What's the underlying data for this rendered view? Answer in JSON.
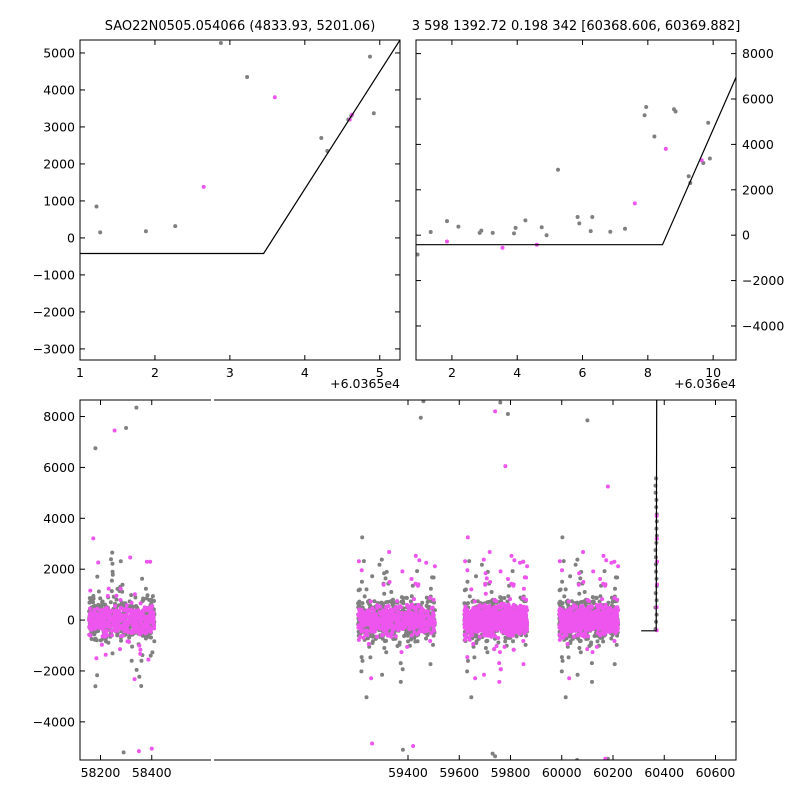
{
  "titles": {
    "left": "SAO22N0505.054066 (4833.93, 5201.06)",
    "right": "3 598 1392.72 0.198 342 [60368.606, 60369.882]"
  },
  "colors": {
    "grey": "#808080",
    "magenta": "#ee55ee",
    "line": "#000000"
  },
  "offsets": {
    "top_left": "+6.0365e4",
    "top_right": "+6.036e4"
  },
  "chart_data": [
    {
      "type": "scatter",
      "panel": "top-left zoom",
      "title": "SAO22N0505.054066 (4833.93, 5201.06)",
      "xlim": [
        1.0,
        5.27
      ],
      "ylim": [
        -3300,
        5350
      ],
      "xticks": [
        1,
        2,
        3,
        4,
        5
      ],
      "yticks": [
        -3000,
        -2000,
        -1000,
        0,
        1000,
        2000,
        3000,
        4000,
        5000
      ],
      "x_offset_label": "+6.0365e4",
      "series": [
        {
          "color": "grey",
          "points": [
            [
              1.22,
              850
            ],
            [
              1.27,
              150
            ],
            [
              1.88,
              180
            ],
            [
              2.27,
              320
            ],
            [
              2.88,
              5270
            ],
            [
              3.23,
              4350
            ],
            [
              4.22,
              2700
            ],
            [
              4.3,
              2350
            ],
            [
              4.58,
              3200
            ],
            [
              4.87,
              4900
            ],
            [
              4.92,
              3370
            ],
            [
              4.62,
              3300
            ]
          ]
        },
        {
          "color": "magenta",
          "points": [
            [
              2.65,
              1380
            ],
            [
              3.6,
              3800
            ],
            [
              4.6,
              3200
            ],
            [
              4.63,
              3330
            ]
          ]
        }
      ],
      "model_line": [
        [
          1.0,
          -420
        ],
        [
          3.45,
          -420
        ],
        [
          5.27,
          5350
        ]
      ]
    },
    {
      "type": "scatter",
      "panel": "top-right zoom",
      "title": "3 598 1392.72 0.198 342 [60368.606, 60369.882]",
      "xlim": [
        0.9,
        10.7
      ],
      "ylim": [
        -5500,
        8600
      ],
      "xticks": [
        2,
        4,
        6,
        8,
        10
      ],
      "yticks": [
        -4000,
        -2000,
        0,
        2000,
        4000,
        6000,
        8000
      ],
      "x_offset_label": "+6.036e4",
      "series": [
        {
          "color": "grey",
          "points": [
            [
              0.95,
              -850
            ],
            [
              1.35,
              140
            ],
            [
              1.85,
              620
            ],
            [
              2.2,
              380
            ],
            [
              2.85,
              100
            ],
            [
              2.9,
              200
            ],
            [
              3.25,
              100
            ],
            [
              3.9,
              80
            ],
            [
              3.95,
              320
            ],
            [
              4.25,
              650
            ],
            [
              4.75,
              350
            ],
            [
              4.9,
              0
            ],
            [
              5.25,
              2880
            ],
            [
              5.85,
              800
            ],
            [
              5.9,
              520
            ],
            [
              6.25,
              180
            ],
            [
              6.3,
              800
            ],
            [
              6.85,
              150
            ],
            [
              7.3,
              280
            ],
            [
              7.9,
              5280
            ],
            [
              7.95,
              5650
            ],
            [
              8.2,
              4350
            ],
            [
              8.8,
              5550
            ],
            [
              8.85,
              5450
            ],
            [
              9.25,
              2600
            ],
            [
              9.3,
              2300
            ],
            [
              9.7,
              3180
            ],
            [
              9.85,
              4950
            ],
            [
              9.9,
              3380
            ]
          ]
        },
        {
          "color": "magenta",
          "points": [
            [
              1.85,
              -280
            ],
            [
              3.55,
              -550
            ],
            [
              4.6,
              -420
            ],
            [
              7.6,
              1400
            ],
            [
              8.55,
              3800
            ],
            [
              9.65,
              3300
            ]
          ]
        }
      ],
      "model_line": [
        [
          0.9,
          -420
        ],
        [
          8.45,
          -420
        ],
        [
          10.7,
          6950
        ]
      ]
    },
    {
      "type": "scatter",
      "panel": "bottom full light curve",
      "xlim": [
        58120,
        60680
      ],
      "ylim": [
        -5500,
        8650
      ],
      "xticks": [
        58200,
        58400,
        59400,
        59600,
        59800,
        60000,
        60200,
        60400,
        60600
      ],
      "yticks": [
        -4000,
        -2000,
        0,
        2000,
        4000,
        6000,
        8000
      ],
      "axis_break": [
        58430,
        59190
      ],
      "clusters": [
        {
          "range": [
            58155,
            58410
          ],
          "grey": 540,
          "magenta": 430
        },
        {
          "range": [
            59205,
            59505
          ],
          "grey": 620,
          "magenta": 480
        },
        {
          "range": [
            59620,
            59865
          ],
          "grey": 560,
          "magenta": 760
        },
        {
          "range": [
            59990,
            60220
          ],
          "grey": 580,
          "magenta": 560
        },
        {
          "range": [
            60365,
            60372
          ],
          "grey": 22,
          "magenta": 6
        }
      ],
      "outliers_grey": [
        [
          58180,
          6750
        ],
        [
          58340,
          8350
        ],
        [
          58300,
          7550
        ],
        [
          58180,
          -2600
        ],
        [
          58290,
          -5200
        ],
        [
          59460,
          8600
        ],
        [
          59450,
          7950
        ],
        [
          59380,
          -5100
        ],
        [
          59760,
          8550
        ],
        [
          59790,
          8100
        ],
        [
          59740,
          -5350
        ],
        [
          59730,
          -5250
        ],
        [
          60100,
          7850
        ],
        [
          60060,
          -5500
        ],
        [
          60180,
          -5450
        ]
      ],
      "outliers_magenta": [
        [
          58255,
          7450
        ],
        [
          58350,
          -5150
        ],
        [
          58400,
          -5050
        ],
        [
          59740,
          8200
        ],
        [
          59780,
          6050
        ],
        [
          59420,
          -4950
        ],
        [
          59260,
          -4850
        ],
        [
          60180,
          5250
        ],
        [
          60170,
          -5450
        ]
      ],
      "model_line": [
        [
          60310,
          -420
        ],
        [
          60368.45,
          -420
        ],
        [
          60370.7,
          8650
        ]
      ]
    }
  ]
}
